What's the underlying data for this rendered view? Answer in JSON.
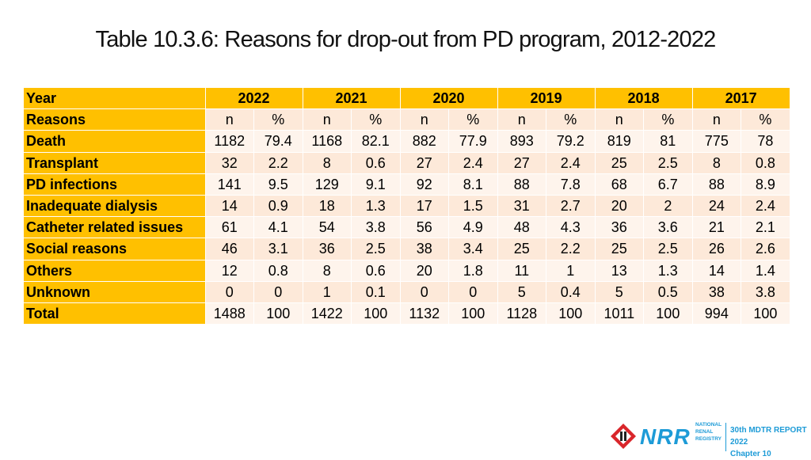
{
  "title": "Table 10.3.6: Reasons for drop-out from PD program, 2012-2022",
  "header": {
    "year_label": "Year",
    "years": [
      "2022",
      "2021",
      "2020",
      "2019",
      "2018",
      "2017"
    ],
    "reasons_label": "Reasons",
    "n_label": "n",
    "pct_label": "%"
  },
  "rows": [
    {
      "label": "Death",
      "values": [
        "1182",
        "79.4",
        "1168",
        "82.1",
        "882",
        "77.9",
        "893",
        "79.2",
        "819",
        "81",
        "775",
        "78"
      ]
    },
    {
      "label": "Transplant",
      "values": [
        "32",
        "2.2",
        "8",
        "0.6",
        "27",
        "2.4",
        "27",
        "2.4",
        "25",
        "2.5",
        "8",
        "0.8"
      ]
    },
    {
      "label": "PD infections",
      "values": [
        "141",
        "9.5",
        "129",
        "9.1",
        "92",
        "8.1",
        "88",
        "7.8",
        "68",
        "6.7",
        "88",
        "8.9"
      ]
    },
    {
      "label": "Inadequate dialysis",
      "values": [
        "14",
        "0.9",
        "18",
        "1.3",
        "17",
        "1.5",
        "31",
        "2.7",
        "20",
        "2",
        "24",
        "2.4"
      ]
    },
    {
      "label": "Catheter related issues",
      "values": [
        "61",
        "4.1",
        "54",
        "3.8",
        "56",
        "4.9",
        "48",
        "4.3",
        "36",
        "3.6",
        "21",
        "2.1"
      ]
    },
    {
      "label": "Social reasons",
      "values": [
        "46",
        "3.1",
        "36",
        "2.5",
        "38",
        "3.4",
        "25",
        "2.2",
        "25",
        "2.5",
        "26",
        "2.6"
      ]
    },
    {
      "label": "Others",
      "values": [
        "12",
        "0.8",
        "8",
        "0.6",
        "20",
        "1.8",
        "11",
        "1",
        "13",
        "1.3",
        "14",
        "1.4"
      ]
    },
    {
      "label": "Unknown",
      "values": [
        "0",
        "0",
        "1",
        "0.1",
        "0",
        "0",
        "5",
        "0.4",
        "5",
        "0.5",
        "38",
        "3.8"
      ]
    },
    {
      "label": "Total",
      "values": [
        "1488",
        "100",
        "1422",
        "100",
        "1132",
        "100",
        "1128",
        "100",
        "1011",
        "100",
        "994",
        "100"
      ]
    }
  ],
  "footer": {
    "logo_text": "NRR",
    "logo_sub_1": "NATIONAL",
    "logo_sub_2": "RENAL",
    "logo_sub_3": "REGISTRY",
    "report_title": "30th MDTR REPORT 2022",
    "chapter": "Chapter 10",
    "brand_color": "#1d9bd7",
    "accent_color": "#ffc000"
  }
}
